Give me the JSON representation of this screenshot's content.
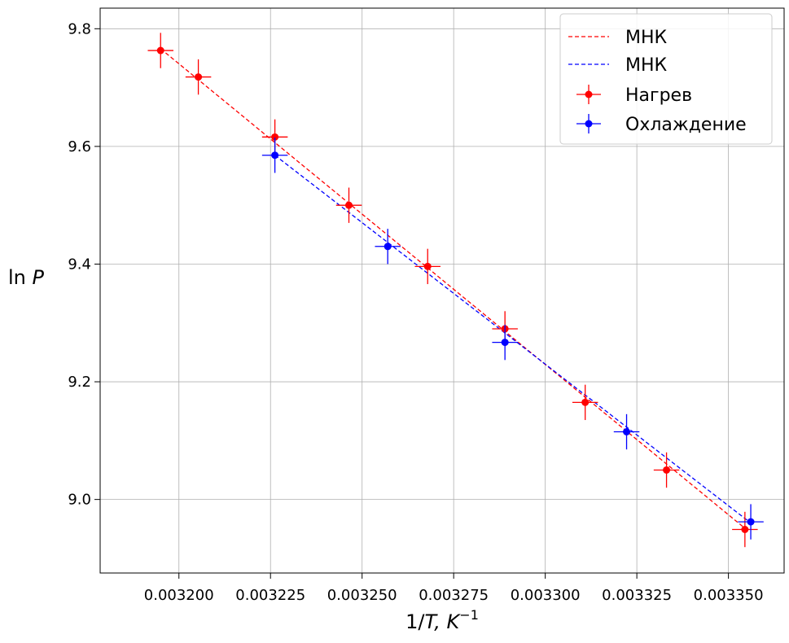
{
  "chart_data": {
    "type": "scatter",
    "xlabel": "1/T, K⁻¹",
    "xlabel_main": "1/",
    "xlabel_var": "T",
    "xlabel_unit": ", K",
    "xlabel_exp": "−1",
    "ylabel": "ln P",
    "ylabel_fn": "ln ",
    "ylabel_var": "P",
    "xlim": [
      0.0031785,
      0.0033652
    ],
    "ylim": [
      8.875,
      9.835
    ],
    "x_ticks": [
      0.0032,
      0.003225,
      0.00325,
      0.003275,
      0.0033,
      0.003325,
      0.00335
    ],
    "x_tick_labels": [
      "0.003200",
      "0.003225",
      "0.003250",
      "0.003275",
      "0.003300",
      "0.003325",
      "0.003350"
    ],
    "y_ticks": [
      9.0,
      9.2,
      9.4,
      9.6,
      9.8
    ],
    "y_tick_labels": [
      "9.0",
      "9.2",
      "9.4",
      "9.6",
      "9.8"
    ],
    "grid": true,
    "legend_position": "top-right",
    "series": [
      {
        "name": "Нагрев",
        "color": "#ff0000",
        "x": [
          0.003195,
          0.0032053,
          0.0032262,
          0.0032464,
          0.0032679,
          0.003289,
          0.0033109,
          0.0033331,
          0.0033545
        ],
        "y": [
          9.763,
          9.718,
          9.616,
          9.5,
          9.396,
          9.29,
          9.165,
          9.05,
          8.949
        ],
        "xerr": 3.5e-06,
        "yerr": 0.03
      },
      {
        "name": "Охлаждение",
        "color": "#0000ff",
        "x": [
          0.0032262,
          0.003257,
          0.003289,
          0.0033222,
          0.0033561
        ],
        "y": [
          9.585,
          9.43,
          9.267,
          9.115,
          8.962
        ],
        "xerr": 3.5e-06,
        "yerr": 0.03
      }
    ],
    "fits": [
      {
        "name": "МНК",
        "color": "#ff0000",
        "x": [
          0.003195,
          0.0033545
        ],
        "y": [
          9.766,
          8.951
        ]
      },
      {
        "name": "МНК",
        "color": "#0000ff",
        "x": [
          0.0032262,
          0.0033561
        ],
        "y": [
          9.585,
          8.96
        ]
      }
    ]
  }
}
